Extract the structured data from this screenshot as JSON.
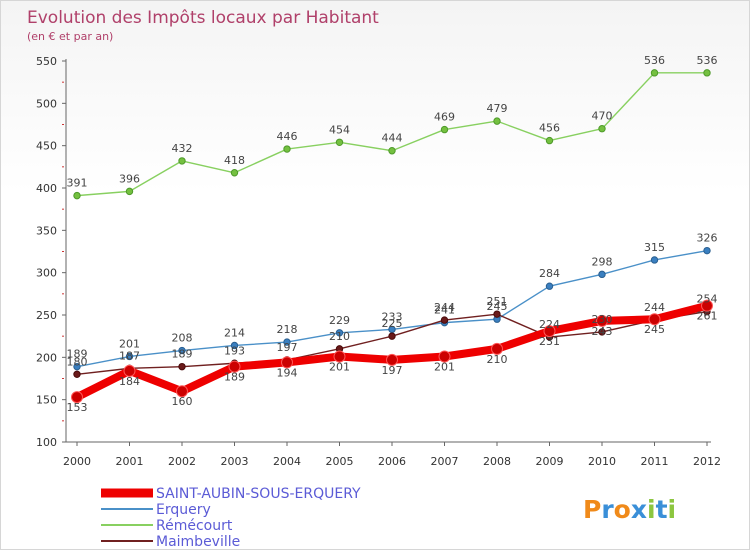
{
  "chart_data": {
    "type": "line",
    "title": "Evolution des Impôts locaux par Habitant",
    "subtitle": "(en € et par an)",
    "x": [
      "2000",
      "2001",
      "2002",
      "2003",
      "2004",
      "2005",
      "2006",
      "2007",
      "2008",
      "2009",
      "2010",
      "2011",
      "2012"
    ],
    "ylim": [
      100,
      550
    ],
    "yticks": [
      100,
      150,
      200,
      250,
      300,
      350,
      400,
      450,
      500,
      550
    ],
    "grid": false,
    "legend_position": "bottom-left",
    "series": [
      {
        "name": "SAINT-AUBIN-SOUS-ERQUERY",
        "color": "#ee0000",
        "values": [
          153,
          184,
          160,
          189,
          194,
          201,
          197,
          201,
          210,
          231,
          243,
          245,
          261
        ]
      },
      {
        "name": "Erquery",
        "color": "#4a90c8",
        "values": [
          189,
          201,
          208,
          214,
          218,
          229,
          233,
          241,
          245,
          284,
          298,
          315,
          326
        ]
      },
      {
        "name": "Rémécourt",
        "color": "#88d060",
        "values": [
          391,
          396,
          432,
          418,
          446,
          454,
          444,
          469,
          479,
          456,
          470,
          536,
          536
        ]
      },
      {
        "name": "Maimbeville",
        "color": "#702020",
        "values": [
          180,
          187,
          189,
          193,
          197,
          210,
          225,
          244,
          251,
          224,
          230,
          244,
          254
        ]
      }
    ]
  },
  "logo": {
    "text": "Proxiti",
    "letters": [
      "P",
      "r",
      "o",
      "x",
      "i",
      "t",
      "i"
    ],
    "colors": [
      "#f08a1a",
      "#3a8fd8",
      "#f08a1a",
      "#3a8fd8",
      "#8cc63f",
      "#3a8fd8",
      "#8cc63f"
    ]
  }
}
